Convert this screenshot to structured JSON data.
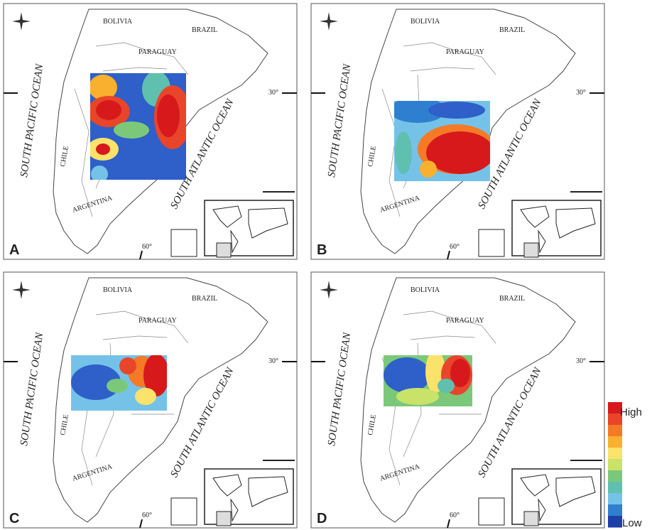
{
  "map_labels": {
    "bolivia": "BOLIVIA",
    "brazil": "BRAZIL",
    "paraguay": "PARAGUAY",
    "pacific": "SOUTH PACIFIC OCEAN",
    "atlantic": "SOUTH ATLANTIC OCEAN",
    "chile": "CHILE",
    "argentina": "ARGENTINA",
    "lat": "30°",
    "lon": "60°"
  },
  "panels": [
    {
      "letter": "A"
    },
    {
      "letter": "B"
    },
    {
      "letter": "C"
    },
    {
      "letter": "D"
    }
  ],
  "legend": {
    "high": "High",
    "low": "Low",
    "colors": [
      "#d7191c",
      "#e8452a",
      "#f57a26",
      "#f9b02e",
      "#fbe26a",
      "#c9e26a",
      "#7cc87a",
      "#5fc0b0",
      "#75c2e8",
      "#2f7fd0",
      "#1f3fa8"
    ]
  }
}
